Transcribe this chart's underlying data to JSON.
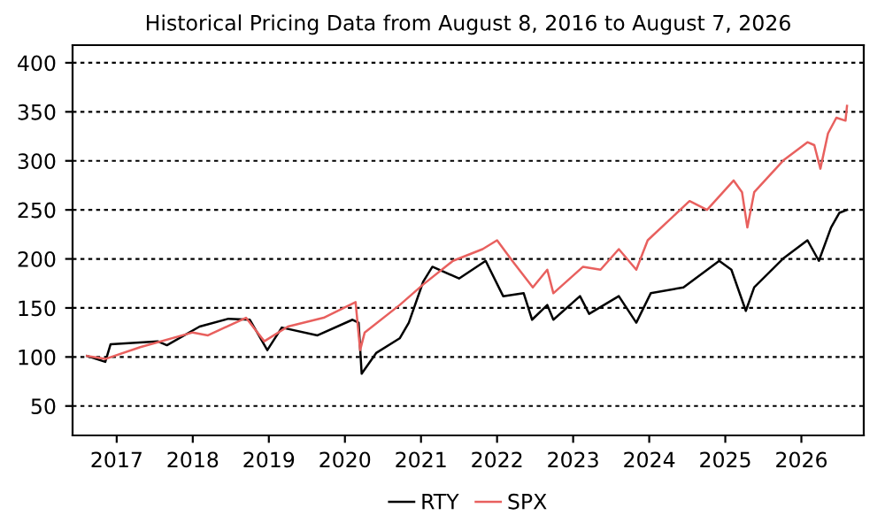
{
  "chart_data": {
    "type": "line",
    "title": "Historical Pricing Data from August 8, 2016 to August 7, 2026",
    "xlim": [
      2016.42,
      2026.82
    ],
    "xticks": [
      2017,
      2018,
      2019,
      2020,
      2021,
      2022,
      2023,
      2024,
      2025,
      2026
    ],
    "ylim": [
      20,
      418
    ],
    "yticks": [
      50,
      100,
      150,
      200,
      250,
      300,
      350,
      400
    ],
    "grid": "y",
    "legend": "bottom",
    "line_style": "solid",
    "marker": "none",
    "series": [
      {
        "name": "RTY",
        "color": "#000000",
        "x": [
          2016.61,
          2016.85,
          2016.92,
          2017.54,
          2017.66,
          2018.09,
          2018.47,
          2018.75,
          2018.98,
          2019.17,
          2019.64,
          2020.1,
          2020.18,
          2020.22,
          2020.41,
          2020.72,
          2020.84,
          2021.03,
          2021.15,
          2021.5,
          2021.85,
          2022.08,
          2022.35,
          2022.46,
          2022.66,
          2022.74,
          2023.09,
          2023.21,
          2023.6,
          2023.83,
          2024.02,
          2024.45,
          2024.92,
          2025.08,
          2025.27,
          2025.38,
          2025.77,
          2026.08,
          2026.23,
          2026.39,
          2026.5,
          2026.6
        ],
        "values": [
          101,
          95,
          113,
          116,
          112,
          131,
          139,
          138,
          107,
          130,
          122,
          138,
          135,
          83,
          104,
          119,
          135,
          177,
          192,
          180,
          198,
          162,
          165,
          138,
          153,
          138,
          162,
          144,
          162,
          135,
          165,
          171,
          198,
          189,
          147,
          171,
          201,
          219,
          198,
          232,
          247,
          250
        ]
      },
      {
        "name": "SPX",
        "color": "#e8605e",
        "x": [
          2016.61,
          2016.85,
          2017.31,
          2018.0,
          2018.2,
          2018.7,
          2018.94,
          2019.25,
          2019.72,
          2020.14,
          2020.2,
          2020.26,
          2020.72,
          2021.03,
          2021.42,
          2021.81,
          2022.0,
          2022.2,
          2022.47,
          2022.66,
          2022.74,
          2023.13,
          2023.36,
          2023.6,
          2023.83,
          2023.98,
          2024.53,
          2024.76,
          2025.11,
          2025.22,
          2025.29,
          2025.38,
          2025.77,
          2026.08,
          2026.17,
          2026.25,
          2026.35,
          2026.46,
          2026.58,
          2026.6
        ],
        "values": [
          101,
          98,
          110,
          125,
          122,
          140,
          116,
          131,
          140,
          156,
          107,
          125,
          153,
          174,
          198,
          210,
          219,
          198,
          171,
          189,
          165,
          192,
          189,
          210,
          189,
          219,
          259,
          250,
          280,
          268,
          232,
          268,
          301,
          319,
          316,
          292,
          328,
          344,
          341,
          356
        ]
      }
    ]
  }
}
